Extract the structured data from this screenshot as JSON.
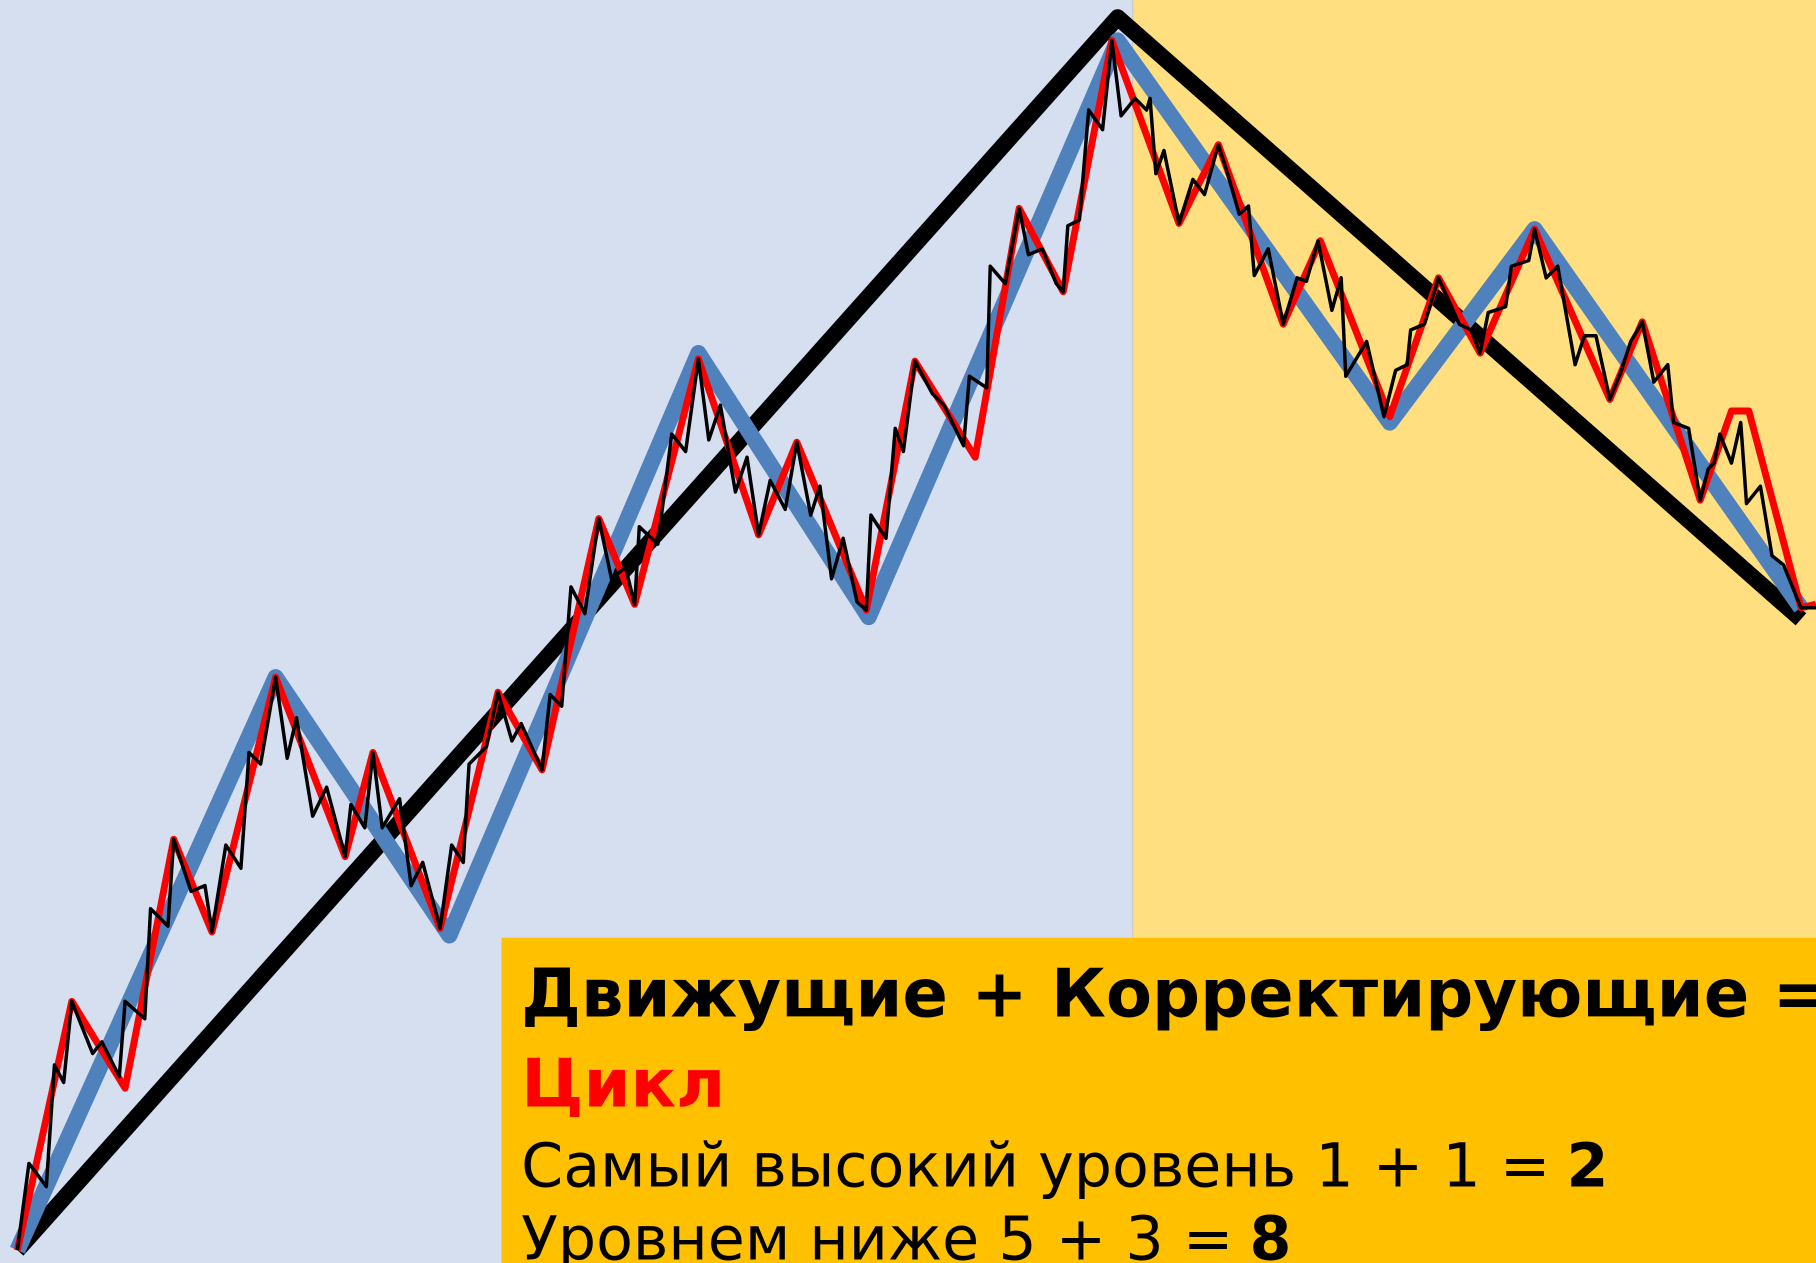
{
  "box": {
    "heading": "Движущие + Корректирующие =",
    "result": "Цикл",
    "lines": [
      {
        "text": "Самый высокий уровень 1 + 1 =",
        "total": "2"
      },
      {
        "text": "Уровнем ниже 5 + 3 =",
        "total": "8"
      }
    ]
  }
}
